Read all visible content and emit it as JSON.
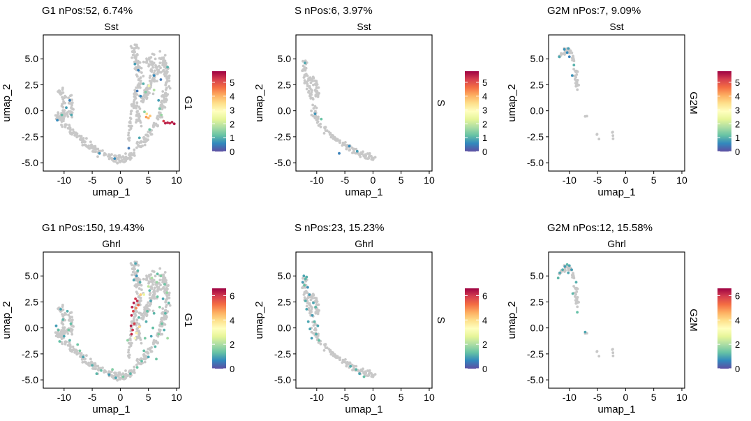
{
  "palette": {
    "background_points": "#c8c8c8",
    "colorbar_stops": [
      "#5e4fa2",
      "#3288bd",
      "#66c2a5",
      "#abdda4",
      "#e6f598",
      "#ffffbf",
      "#fee08b",
      "#fdae61",
      "#f46d43",
      "#d53e4f",
      "#9e0142"
    ]
  },
  "chart_data": [
    {
      "type": "scatter",
      "title": "G1 nPos:52, 6.74%",
      "subtitle": "Sst",
      "xlabel": "umap_1",
      "ylabel": "umap_2",
      "strip_label": "G1",
      "xlim": [
        -13.7,
        10.5
      ],
      "ylim": [
        -5.8,
        7.3
      ],
      "xticks": [
        "-10",
        "-5",
        "0",
        "5",
        "10"
      ],
      "xtick_values": [
        -10,
        -5,
        0,
        5,
        10
      ],
      "yticks": [
        "-5.0",
        "-2.5",
        "0.0",
        "2.5",
        "5.0"
      ],
      "ytick_values": [
        -5,
        -2.5,
        0,
        2.5,
        5
      ],
      "colorbar": {
        "min": 0,
        "max": 5.8,
        "ticks": [
          "0",
          "1",
          "2",
          "3",
          "4",
          "5"
        ],
        "tick_values": [
          0,
          1,
          2,
          3,
          4,
          5
        ]
      },
      "cluster": "full",
      "highlight": [
        [
          8.0,
          -1.2,
          5.5
        ],
        [
          8.4,
          -1.15,
          5.5
        ],
        [
          8.8,
          -1.2,
          5.4
        ],
        [
          9.2,
          -1.1,
          5.5
        ],
        [
          9.6,
          -1.25,
          5.6
        ],
        [
          7.7,
          -1.0,
          5.2
        ],
        [
          4.6,
          -0.6,
          4.2
        ],
        [
          5.0,
          -0.7,
          4.0
        ],
        [
          5.3,
          -0.5,
          3.8
        ],
        [
          4.7,
          -0.3,
          3.5
        ],
        [
          4.3,
          -0.1,
          1.5
        ],
        [
          3.0,
          1.9,
          0.4
        ],
        [
          3.6,
          1.4,
          0.6
        ],
        [
          4.5,
          1.8,
          1.4
        ],
        [
          5.1,
          2.4,
          2.6
        ],
        [
          6.0,
          2.0,
          1.8
        ],
        [
          6.8,
          1.0,
          0.8
        ],
        [
          7.3,
          -0.4,
          1.6
        ],
        [
          2.6,
          4.5,
          0.8
        ],
        [
          3.2,
          3.9,
          0.5
        ],
        [
          4.1,
          2.6,
          1.0
        ],
        [
          6.0,
          3.4,
          0.6
        ],
        [
          7.2,
          3.0,
          0.4
        ],
        [
          8.4,
          4.2,
          1.0
        ],
        [
          -9.6,
          0.3,
          0.8
        ],
        [
          -10.4,
          -0.4,
          1.1
        ],
        [
          -9.0,
          1.0,
          0.5
        ],
        [
          -11.2,
          -0.9,
          0.6
        ],
        [
          -8.7,
          -0.4,
          0.9
        ],
        [
          -3.7,
          -4.1,
          0.7
        ],
        [
          -1.0,
          -4.6,
          0.6
        ],
        [
          1.5,
          -3.6,
          0.4
        ],
        [
          3.4,
          -2.6,
          0.9
        ],
        [
          5.2,
          -1.8,
          1.2
        ],
        [
          7.0,
          0.2,
          1.2
        ]
      ]
    },
    {
      "type": "scatter",
      "title": "S nPos:6, 3.97%",
      "subtitle": "Sst",
      "xlabel": "umap_1",
      "ylabel": "umap_2",
      "strip_label": "S",
      "xlim": [
        -13.7,
        10.5
      ],
      "ylim": [
        -5.8,
        7.3
      ],
      "xticks": [
        "-10",
        "-5",
        "0",
        "5",
        "10"
      ],
      "xtick_values": [
        -10,
        -5,
        0,
        5,
        10
      ],
      "yticks": [
        "-5.0",
        "-2.5",
        "0.0",
        "2.5",
        "5.0"
      ],
      "ytick_values": [
        -5,
        -2.5,
        0,
        2.5,
        5
      ],
      "colorbar": {
        "min": 0,
        "max": 5.8,
        "ticks": [
          "0",
          "1",
          "2",
          "3",
          "4",
          "5"
        ],
        "tick_values": [
          0,
          1,
          2,
          3,
          4,
          5
        ]
      },
      "cluster": "s",
      "highlight": [
        [
          -12.1,
          4.6,
          0.9
        ],
        [
          -10.3,
          -0.3,
          0.7
        ],
        [
          -9.2,
          -0.8,
          1.2
        ],
        [
          -4.2,
          -3.4,
          0.6
        ],
        [
          -6.0,
          -4.1,
          0.5
        ],
        [
          -2.8,
          -3.9,
          0.8
        ]
      ]
    },
    {
      "type": "scatter",
      "title": "G2M nPos:7, 9.09%",
      "subtitle": "Sst",
      "xlabel": "umap_1",
      "ylabel": "umap_2",
      "strip_label": "G2M",
      "xlim": [
        -13.7,
        10.5
      ],
      "ylim": [
        -5.8,
        7.3
      ],
      "xticks": [
        "-10",
        "-5",
        "0",
        "5",
        "10"
      ],
      "xtick_values": [
        -10,
        -5,
        0,
        5,
        10
      ],
      "yticks": [
        "-5.0",
        "-2.5",
        "0.0",
        "2.5",
        "5.0"
      ],
      "ytick_values": [
        -5,
        -2.5,
        0,
        2.5,
        5
      ],
      "colorbar": {
        "min": 0,
        "max": 5.8,
        "ticks": [
          "0",
          "1",
          "2",
          "3",
          "4",
          "5"
        ],
        "tick_values": [
          0,
          1,
          2,
          3,
          4,
          5
        ]
      },
      "cluster": "g2m",
      "highlight": [
        [
          -10.2,
          6.0,
          0.8
        ],
        [
          -10.4,
          5.6,
          0.6
        ],
        [
          -11.8,
          5.2,
          0.9
        ],
        [
          -9.5,
          3.4,
          0.7
        ],
        [
          -10.0,
          5.2,
          0.5
        ],
        [
          -10.9,
          5.9,
          0.7
        ],
        [
          -9.2,
          4.4,
          1.0
        ]
      ]
    },
    {
      "type": "scatter",
      "title": "G1 nPos:150, 19.43%",
      "subtitle": "Ghrl",
      "xlabel": "umap_1",
      "ylabel": "umap_2",
      "strip_label": "G1",
      "xlim": [
        -13.7,
        10.5
      ],
      "ylim": [
        -5.8,
        7.3
      ],
      "xticks": [
        "-10",
        "-5",
        "0",
        "5",
        "10"
      ],
      "xtick_values": [
        -10,
        -5,
        0,
        5,
        10
      ],
      "yticks": [
        "-5.0",
        "-2.5",
        "0.0",
        "2.5",
        "5.0"
      ],
      "ytick_values": [
        -5,
        -2.5,
        0,
        2.5,
        5
      ],
      "colorbar": {
        "min": 0,
        "max": 6.6,
        "ticks": [
          "0",
          "2",
          "4",
          "6"
        ],
        "tick_values": [
          0,
          2,
          4,
          6
        ]
      },
      "cluster": "full",
      "highlight": [
        [
          2.1,
          2.0,
          6.2
        ],
        [
          2.4,
          2.4,
          6.3
        ],
        [
          2.7,
          2.8,
          6.0
        ],
        [
          3.0,
          2.6,
          6.1
        ],
        [
          2.3,
          1.6,
          5.8
        ],
        [
          2.0,
          1.2,
          6.2
        ],
        [
          1.9,
          0.2,
          6.3
        ],
        [
          2.2,
          -0.2,
          6.0
        ],
        [
          2.0,
          -0.6,
          6.1
        ],
        [
          2.5,
          0.4,
          5.9
        ],
        [
          3.2,
          2.2,
          5.5
        ],
        [
          2.8,
          1.9,
          5.0
        ],
        [
          3.4,
          0.1,
          4.0
        ],
        [
          3.6,
          3.2,
          4.2
        ],
        [
          2.6,
          -1.0,
          3.2
        ],
        [
          2.9,
          -0.5,
          3.6
        ],
        [
          4.2,
          3.2,
          2.8
        ],
        [
          5.0,
          4.0,
          2.2
        ],
        [
          6.5,
          4.4,
          1.8
        ],
        [
          5.6,
          4.8,
          2.0
        ],
        [
          2.7,
          6.2,
          1.0
        ],
        [
          3.1,
          5.5,
          1.2
        ],
        [
          2.9,
          5.0,
          0.8
        ],
        [
          3.5,
          4.4,
          1.1
        ],
        [
          7.2,
          5.0,
          1.6
        ],
        [
          7.9,
          4.2,
          1.4
        ],
        [
          8.3,
          3.4,
          1.8
        ],
        [
          7.6,
          2.8,
          1.0
        ],
        [
          8.0,
          1.4,
          1.2
        ],
        [
          7.4,
          0.4,
          1.4
        ],
        [
          6.8,
          -0.6,
          1.6
        ],
        [
          8.4,
          -1.0,
          1.9
        ],
        [
          6.2,
          -1.8,
          1.2
        ],
        [
          5.0,
          -2.8,
          1.0
        ],
        [
          4.2,
          -2.2,
          1.3
        ],
        [
          3.0,
          -3.8,
          1.4
        ],
        [
          1.8,
          -4.4,
          1.2
        ],
        [
          0.5,
          -4.7,
          1.5
        ],
        [
          -0.8,
          -4.8,
          1.0
        ],
        [
          -2.0,
          -4.5,
          0.9
        ],
        [
          -3.4,
          -4.1,
          1.3
        ],
        [
          -5.0,
          -3.6,
          1.1
        ],
        [
          -6.6,
          -2.8,
          1.0
        ],
        [
          -7.6,
          -1.6,
          1.4
        ],
        [
          -9.0,
          -1.2,
          1.2
        ],
        [
          -10.0,
          -0.8,
          1.0
        ],
        [
          -10.8,
          -1.3,
          1.3
        ],
        [
          -11.4,
          0.2,
          0.9
        ],
        [
          -9.4,
          1.6,
          1.1
        ],
        [
          -10.2,
          0.8,
          1.2
        ],
        [
          -8.8,
          0.4,
          1.3
        ],
        [
          -10.6,
          1.8,
          1.0
        ],
        [
          -9.2,
          -0.2,
          1.5
        ],
        [
          4.8,
          1.6,
          1.3
        ],
        [
          5.4,
          2.6,
          1.0
        ],
        [
          6.0,
          1.4,
          1.2
        ],
        [
          6.6,
          3.0,
          1.4
        ],
        [
          4.6,
          0.6,
          1.1
        ],
        [
          5.8,
          0.0,
          1.3
        ],
        [
          1.3,
          -1.2,
          1.7
        ],
        [
          4.4,
          -1.0,
          1.5
        ],
        [
          7.0,
          2.0,
          1.6
        ],
        [
          5.2,
          3.6,
          1.2
        ],
        [
          3.8,
          -3.2,
          1.3
        ],
        [
          -1.4,
          -4.0,
          1.6
        ],
        [
          -4.2,
          -4.4,
          1.2
        ],
        [
          6.4,
          -3.0,
          1.4
        ],
        [
          8.6,
          2.4,
          1.2
        ],
        [
          7.8,
          -0.2,
          1.1
        ],
        [
          6.6,
          5.2,
          1.3
        ],
        [
          3.3,
          1.0,
          1.2
        ],
        [
          5.5,
          -0.8,
          1.0
        ],
        [
          -7.2,
          -2.2,
          1.5
        ],
        [
          -11.0,
          -0.2,
          1.3
        ],
        [
          2.4,
          4.6,
          1.0
        ]
      ]
    },
    {
      "type": "scatter",
      "title": "S nPos:23, 15.23%",
      "subtitle": "Ghrl",
      "xlabel": "umap_1",
      "ylabel": "umap_2",
      "strip_label": "S",
      "xlim": [
        -13.7,
        10.5
      ],
      "ylim": [
        -5.8,
        7.3
      ],
      "xticks": [
        "-10",
        "-5",
        "0",
        "5",
        "10"
      ],
      "xtick_values": [
        -10,
        -5,
        0,
        5,
        10
      ],
      "yticks": [
        "-5.0",
        "-2.5",
        "0.0",
        "2.5",
        "5.0"
      ],
      "ytick_values": [
        -5,
        -2.5,
        0,
        2.5,
        5
      ],
      "colorbar": {
        "min": 0,
        "max": 6.6,
        "ticks": [
          "0",
          "2",
          "4",
          "6"
        ],
        "tick_values": [
          0,
          2,
          4,
          6
        ]
      },
      "cluster": "s",
      "highlight": [
        [
          -12.3,
          5.0,
          1.0
        ],
        [
          -12.0,
          4.7,
          1.2
        ],
        [
          -12.5,
          4.4,
          0.9
        ],
        [
          -11.8,
          4.9,
          1.1
        ],
        [
          -12.2,
          4.1,
          1.3
        ],
        [
          -11.6,
          3.9,
          0.8
        ],
        [
          -10.6,
          2.4,
          1.0
        ],
        [
          -10.2,
          2.0,
          1.2
        ],
        [
          -11.8,
          1.8,
          1.0
        ],
        [
          -10.8,
          1.2,
          0.9
        ],
        [
          -10.4,
          0.6,
          1.2
        ],
        [
          -11.2,
          -0.1,
          1.0
        ],
        [
          -10.1,
          -0.6,
          1.1
        ],
        [
          -10.9,
          -1.0,
          0.9
        ],
        [
          -9.6,
          -1.2,
          1.3
        ],
        [
          -11.5,
          0.6,
          1.0
        ],
        [
          -12.0,
          2.6,
          1.1
        ],
        [
          -9.8,
          0.2,
          1.0
        ],
        [
          -11.3,
          3.2,
          0.9
        ],
        [
          -3.0,
          -4.0,
          1.2
        ],
        [
          -2.4,
          -4.4,
          1.0
        ],
        [
          -1.6,
          -4.7,
          1.3
        ],
        [
          -4.0,
          -3.7,
          1.1
        ]
      ]
    },
    {
      "type": "scatter",
      "title": "G2M nPos:12, 15.58%",
      "subtitle": "Ghrl",
      "xlabel": "umap_1",
      "ylabel": "umap_2",
      "strip_label": "G2M",
      "xlim": [
        -13.7,
        10.5
      ],
      "ylim": [
        -5.8,
        7.3
      ],
      "xticks": [
        "-10",
        "-5",
        "0",
        "5",
        "10"
      ],
      "xtick_values": [
        -10,
        -5,
        0,
        5,
        10
      ],
      "yticks": [
        "-5.0",
        "-2.5",
        "0.0",
        "2.5",
        "5.0"
      ],
      "ytick_values": [
        -5,
        -2.5,
        0,
        2.5,
        5
      ],
      "colorbar": {
        "min": 0,
        "max": 6.6,
        "ticks": [
          "0",
          "2",
          "4",
          "6"
        ],
        "tick_values": [
          0,
          2,
          4,
          6
        ]
      },
      "cluster": "g2m",
      "highlight": [
        [
          -10.0,
          6.0,
          1.0
        ],
        [
          -10.4,
          6.1,
          1.2
        ],
        [
          -10.8,
          5.9,
          0.9
        ],
        [
          -11.2,
          5.6,
          1.1
        ],
        [
          -11.7,
          5.3,
          1.0
        ],
        [
          -12.0,
          4.8,
          1.2
        ],
        [
          -9.6,
          5.6,
          0.9
        ],
        [
          -10.2,
          5.3,
          1.0
        ],
        [
          -8.8,
          4.4,
          1.1
        ],
        [
          -9.4,
          3.3,
          1.2
        ],
        [
          -8.6,
          1.5,
          1.3
        ],
        [
          -7.2,
          -0.4,
          1.0
        ]
      ]
    }
  ]
}
